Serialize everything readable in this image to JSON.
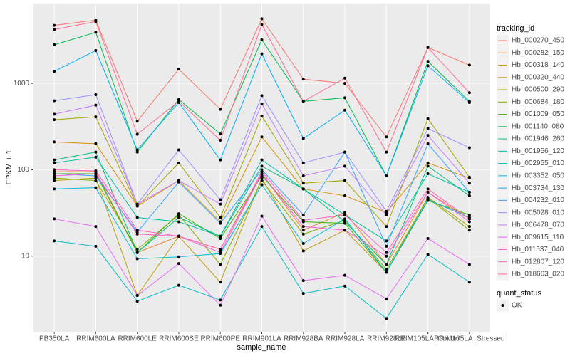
{
  "chart_data": {
    "type": "line",
    "x_label": "sample_name",
    "y_label": "FPKM + 1",
    "categories": [
      "PB350LA",
      "RRIM600LA",
      "RRIM600LE",
      "RRIM600SE",
      "RRIM600PE",
      "RRIM901LA",
      "RRIM928BA",
      "RRIM928LA",
      "RRIM928LE",
      "RRIM105LA_Control",
      "RRIM105LA_Stressed"
    ],
    "log_y": true,
    "ylim": [
      1.33,
      8400
    ],
    "yticks": [
      10,
      100,
      1000
    ],
    "grid": true,
    "legend": "right",
    "legend_title": "tracking_id",
    "status_legend": {
      "title": "quant_status",
      "label": "OK",
      "color": "#000000"
    },
    "series": [
      {
        "name": "Hb_000270_450",
        "color": "#F8766D",
        "values": [
          4700,
          5400,
          365,
          1460,
          500,
          5600,
          1120,
          1000,
          240,
          2600,
          1630
        ]
      },
      {
        "name": "Hb_000282_150",
        "color": "#EA8331",
        "values": [
          95,
          95,
          11,
          17,
          12,
          90,
          20,
          32,
          8,
          55,
          27
        ]
      },
      {
        "name": "Hb_000318_140",
        "color": "#D89000",
        "values": [
          210,
          200,
          38,
          75,
          25,
          240,
          60,
          50,
          32,
          120,
          80
        ]
      },
      {
        "name": "Hb_000320_440",
        "color": "#C09B00",
        "values": [
          75,
          80,
          3.5,
          17,
          5,
          80,
          11.5,
          20,
          6.5,
          48,
          22
        ]
      },
      {
        "name": "Hb_000500_290",
        "color": "#A3A500",
        "values": [
          380,
          410,
          38,
          120,
          28,
          420,
          70,
          75,
          22,
          390,
          82
        ]
      },
      {
        "name": "Hb_000684_180",
        "color": "#7CAE00",
        "values": [
          80,
          75,
          12,
          30,
          8,
          75,
          18,
          26,
          7,
          47,
          20
        ]
      },
      {
        "name": "Hb_001009_050",
        "color": "#39B600",
        "values": [
          90,
          90,
          11,
          31,
          16,
          85,
          25,
          24,
          6.5,
          44,
          30
        ]
      },
      {
        "name": "Hb_001140_080",
        "color": "#00BB4E",
        "values": [
          2800,
          3900,
          160,
          650,
          260,
          3200,
          620,
          680,
          85,
          1800,
          620
        ]
      },
      {
        "name": "Hb_001946_260",
        "color": "#00BF7D",
        "values": [
          130,
          160,
          11,
          28,
          17,
          110,
          60,
          25,
          8,
          110,
          50
        ]
      },
      {
        "name": "Hb_001956_120",
        "color": "#00C1A3",
        "values": [
          120,
          140,
          28,
          25,
          17,
          130,
          60,
          30,
          15,
          90,
          55
        ]
      },
      {
        "name": "Hb_002955_010",
        "color": "#00BFC4",
        "values": [
          15,
          13,
          3,
          4.6,
          3.1,
          22,
          3.7,
          4.5,
          1.9,
          10.5,
          5
        ]
      },
      {
        "name": "Hb_003352_050",
        "color": "#00BAE0",
        "values": [
          60,
          62,
          9.3,
          9.8,
          10.7,
          67,
          14,
          27,
          6.5,
          45,
          28
        ]
      },
      {
        "name": "Hb_003734_130",
        "color": "#00B0F6",
        "values": [
          1380,
          2400,
          170,
          600,
          130,
          2200,
          230,
          490,
          85,
          1600,
          600
        ]
      },
      {
        "name": "Hb_004232_010",
        "color": "#35A2FF",
        "values": [
          90,
          85,
          19,
          72,
          24,
          100,
          30,
          160,
          13,
          200,
          55
        ]
      },
      {
        "name": "Hb_005028_010",
        "color": "#9590FF",
        "values": [
          630,
          740,
          40,
          170,
          45,
          720,
          120,
          160,
          33,
          300,
          180
        ]
      },
      {
        "name": "Hb_006478_070",
        "color": "#C77CFF",
        "values": [
          440,
          560,
          40,
          75,
          40,
          580,
          85,
          110,
          30,
          250,
          70
        ]
      },
      {
        "name": "Hb_009615_110",
        "color": "#E76BF3",
        "values": [
          27,
          22,
          3.5,
          8.2,
          2.7,
          29,
          5.2,
          6,
          3.2,
          16,
          8
        ]
      },
      {
        "name": "Hb_011537_040",
        "color": "#FA62DB",
        "values": [
          85,
          90,
          18,
          17,
          11,
          90,
          22,
          20,
          10,
          55,
          25
        ]
      },
      {
        "name": "Hb_012807_120",
        "color": "#FF62BC",
        "values": [
          100,
          97,
          20,
          17,
          12,
          95,
          26,
          30,
          11,
          60,
          27
        ]
      },
      {
        "name": "Hb_018663_020",
        "color": "#FF6C91",
        "values": [
          4200,
          5200,
          258,
          620,
          220,
          4800,
          620,
          1150,
          160,
          2600,
          780
        ]
      }
    ]
  }
}
